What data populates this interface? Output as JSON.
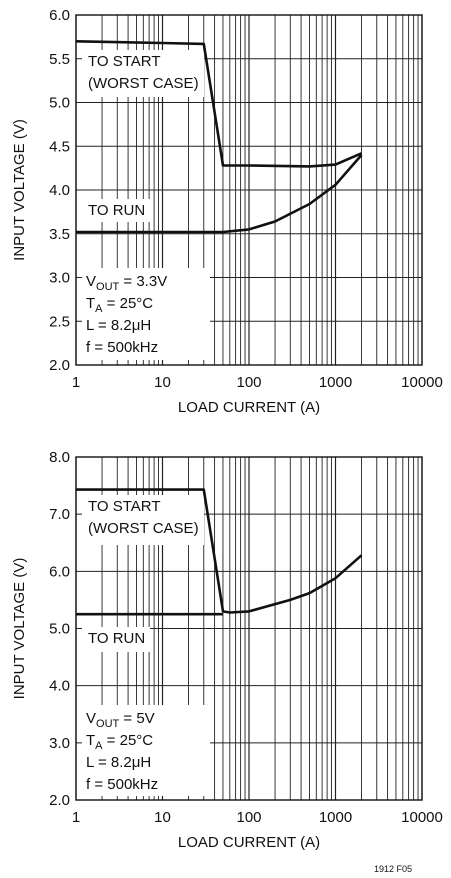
{
  "chart_data": [
    {
      "type": "line",
      "title": "",
      "xlabel": "LOAD CURRENT (A)",
      "ylabel": "INPUT VOLTAGE (V)",
      "xscale": "log",
      "xlim": [
        1,
        10000
      ],
      "ylim": [
        2.0,
        6.0
      ],
      "grid": true,
      "x_ticks": [
        "1",
        "10",
        "100",
        "1000",
        "10000"
      ],
      "y_ticks": [
        "2.0",
        "2.5",
        "3.0",
        "3.5",
        "4.0",
        "4.5",
        "5.0",
        "5.5",
        "6.0"
      ],
      "series": [
        {
          "name": "TO START\n(WORST CASE)",
          "x": [
            1,
            10,
            30,
            50,
            100,
            500,
            1000,
            2000
          ],
          "y": [
            5.7,
            5.68,
            5.67,
            4.28,
            4.28,
            4.27,
            4.29,
            4.42
          ]
        },
        {
          "name": "TO RUN",
          "x": [
            1,
            10,
            50,
            100,
            200,
            500,
            1000,
            2000
          ],
          "y": [
            3.52,
            3.52,
            3.52,
            3.55,
            3.64,
            3.84,
            4.06,
            4.4
          ]
        }
      ],
      "annotations": [
        {
          "main": "V",
          "sub": "OUT",
          "rest": " = 3.3V"
        },
        {
          "main": "T",
          "sub": "A",
          "rest": " = 25°C"
        },
        {
          "main": "L = 8.2μH",
          "sub": "",
          "rest": ""
        },
        {
          "main": "f = 500kHz",
          "sub": "",
          "rest": ""
        }
      ]
    },
    {
      "type": "line",
      "title": "",
      "xlabel": "LOAD CURRENT (A)",
      "ylabel": "INPUT VOLTAGE (V)",
      "xscale": "log",
      "xlim": [
        1,
        10000
      ],
      "ylim": [
        2.0,
        8.0
      ],
      "grid": true,
      "x_ticks": [
        "1",
        "10",
        "100",
        "1000",
        "10000"
      ],
      "y_ticks": [
        "2.0",
        "3.0",
        "4.0",
        "5.0",
        "6.0",
        "7.0",
        "8.0"
      ],
      "series": [
        {
          "name": "TO START\n(WORST CASE)",
          "x": [
            1,
            10,
            30,
            50,
            60,
            100,
            300,
            500,
            1000,
            2000
          ],
          "y": [
            7.43,
            7.43,
            7.43,
            5.3,
            5.28,
            5.3,
            5.5,
            5.62,
            5.88,
            6.28
          ]
        },
        {
          "name": "TO RUN",
          "x": [
            1,
            10,
            50
          ],
          "y": [
            5.25,
            5.25,
            5.25
          ]
        }
      ],
      "annotations": [
        {
          "main": "V",
          "sub": "OUT",
          "rest": " = 5V"
        },
        {
          "main": "T",
          "sub": "A",
          "rest": " = 25°C"
        },
        {
          "main": "L = 8.2μH",
          "sub": "",
          "rest": ""
        },
        {
          "main": "f = 500kHz",
          "sub": "",
          "rest": ""
        }
      ]
    }
  ],
  "footer": "1912 F05"
}
